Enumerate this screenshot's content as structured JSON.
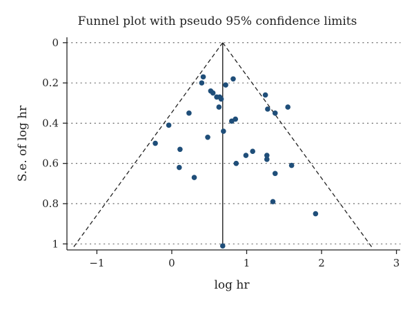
{
  "chart_data": {
    "type": "scatter",
    "title": "Funnel plot with pseudo 95% confidence limits",
    "xlabel": "log hr",
    "ylabel": "S.e. of log hr",
    "xlim": [
      -1.4,
      3.05
    ],
    "ylim": [
      1.03,
      -0.02
    ],
    "y_axis_reversed": true,
    "xticks": [
      -1,
      0,
      1,
      2,
      3
    ],
    "xtick_labels": [
      "−1",
      "0",
      "1",
      "2",
      "3"
    ],
    "yticks": [
      0,
      0.2,
      0.4,
      0.6,
      0.8,
      1
    ],
    "ytick_labels": [
      "0",
      "0.2",
      "0.4",
      "0.6",
      "0.8",
      "1"
    ],
    "grid": "horizontal dotted",
    "point_color": "#1f4e79",
    "pooled_estimate": 0.68,
    "funnel_z": 1.96,
    "funnel_se_max": 1.02,
    "points": [
      {
        "x": 0.4,
        "y": 0.2
      },
      {
        "x": 0.42,
        "y": 0.17
      },
      {
        "x": 0.52,
        "y": 0.24
      },
      {
        "x": 0.55,
        "y": 0.25
      },
      {
        "x": 0.6,
        "y": 0.27
      },
      {
        "x": 0.64,
        "y": 0.27
      },
      {
        "x": 0.66,
        "y": 0.28
      },
      {
        "x": 0.63,
        "y": 0.32
      },
      {
        "x": 0.72,
        "y": 0.21
      },
      {
        "x": 0.82,
        "y": 0.18
      },
      {
        "x": 1.25,
        "y": 0.26
      },
      {
        "x": 1.28,
        "y": 0.33
      },
      {
        "x": 1.38,
        "y": 0.35
      },
      {
        "x": 1.55,
        "y": 0.32
      },
      {
        "x": 0.23,
        "y": 0.35
      },
      {
        "x": 0.8,
        "y": 0.39
      },
      {
        "x": 0.85,
        "y": 0.38
      },
      {
        "x": -0.04,
        "y": 0.41
      },
      {
        "x": 0.69,
        "y": 0.44
      },
      {
        "x": 0.48,
        "y": 0.47
      },
      {
        "x": -0.22,
        "y": 0.5
      },
      {
        "x": 0.11,
        "y": 0.53
      },
      {
        "x": 1.08,
        "y": 0.54
      },
      {
        "x": 0.99,
        "y": 0.56
      },
      {
        "x": 1.27,
        "y": 0.56
      },
      {
        "x": 1.27,
        "y": 0.58
      },
      {
        "x": 0.86,
        "y": 0.6
      },
      {
        "x": 1.6,
        "y": 0.61
      },
      {
        "x": 0.1,
        "y": 0.62
      },
      {
        "x": 1.38,
        "y": 0.65
      },
      {
        "x": 0.3,
        "y": 0.67
      },
      {
        "x": 1.35,
        "y": 0.79
      },
      {
        "x": 1.92,
        "y": 0.85
      },
      {
        "x": 0.68,
        "y": 1.01
      }
    ]
  }
}
